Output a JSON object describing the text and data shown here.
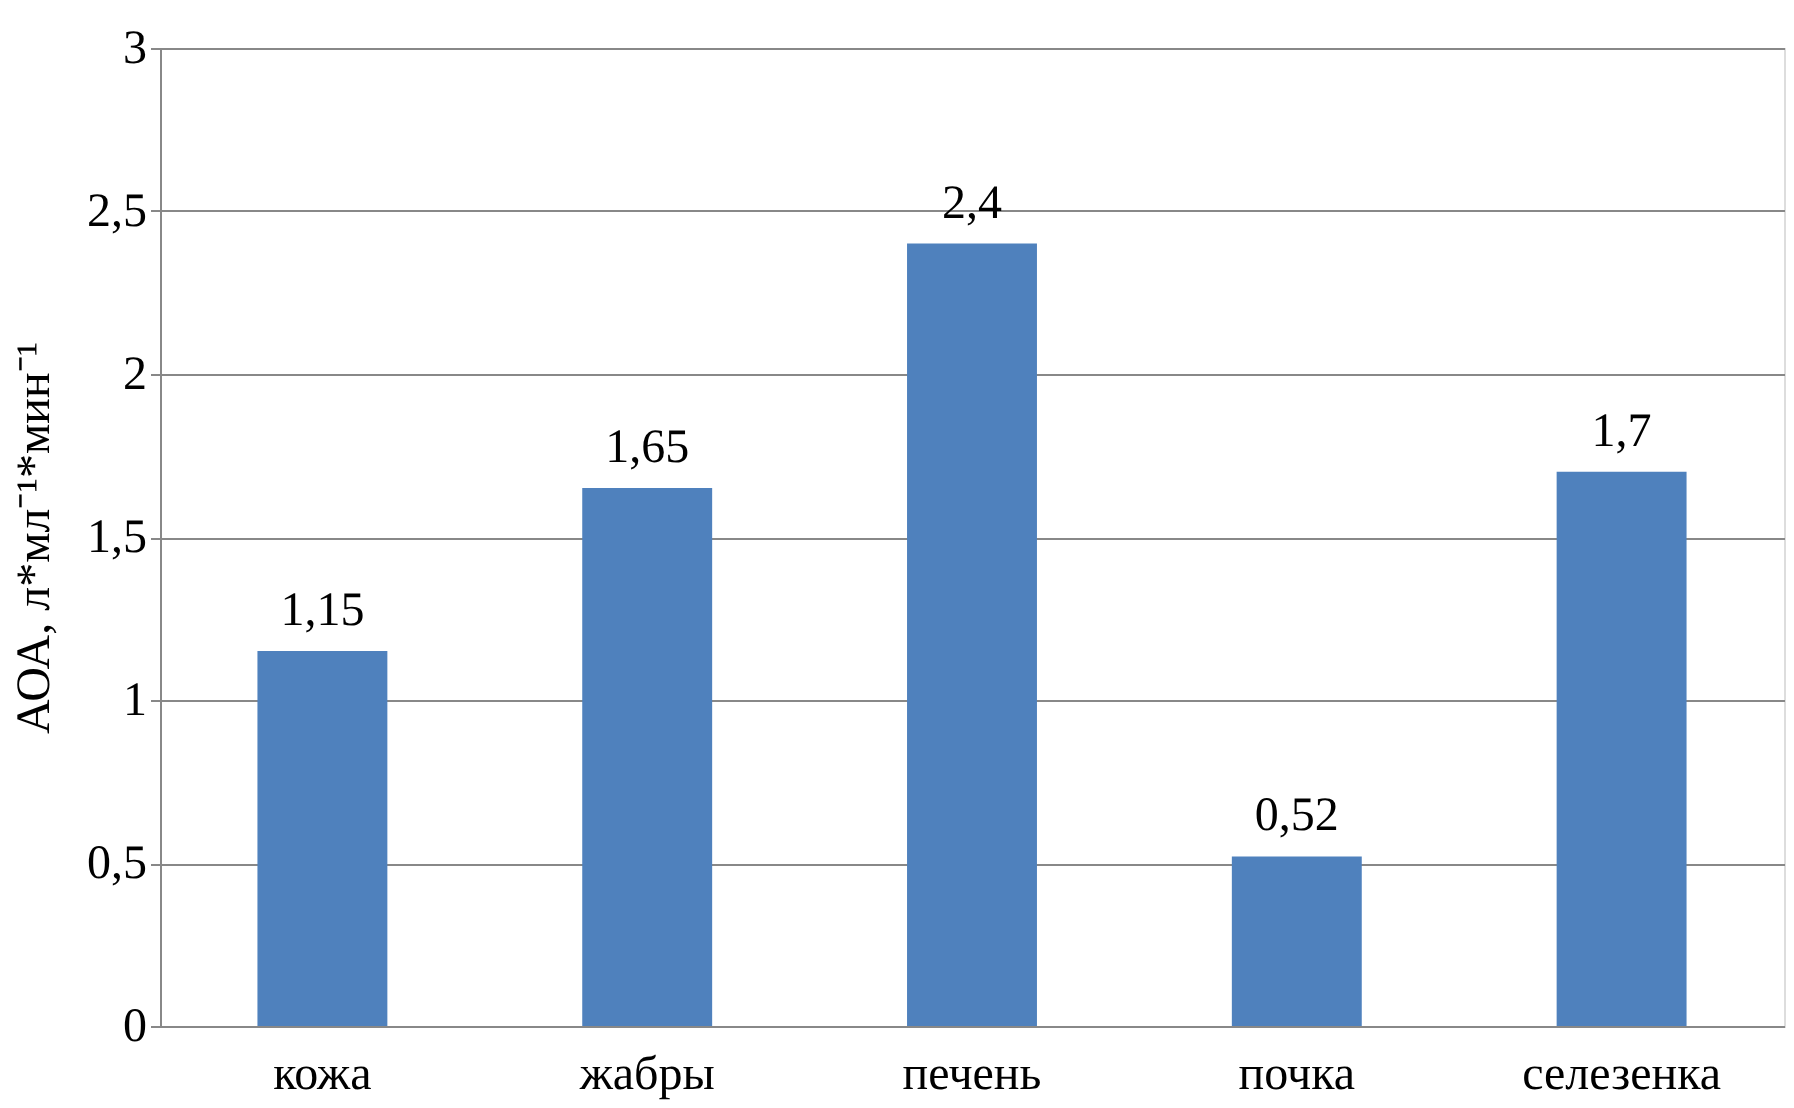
{
  "chart_data": {
    "type": "bar",
    "ylabel": "АОА, л*мл⁻¹*мин⁻¹",
    "categories": [
      "кожа",
      "жабры",
      "печень",
      "почка",
      "селезенка"
    ],
    "values": [
      1.15,
      1.65,
      2.4,
      0.52,
      1.7
    ],
    "value_labels": [
      "1,15",
      "1,65",
      "2,4",
      "0,52",
      "1,7"
    ],
    "color": "#4f81bd",
    "ylim": [
      0,
      3
    ],
    "yticks": [
      0,
      {
        "value": 0.5,
        "label": "0,5"
      },
      1,
      {
        "value": 1.5,
        "label": "1,5"
      },
      2,
      {
        "value": 2.5,
        "label": "2,5"
      },
      3
    ],
    "grid": "y"
  }
}
